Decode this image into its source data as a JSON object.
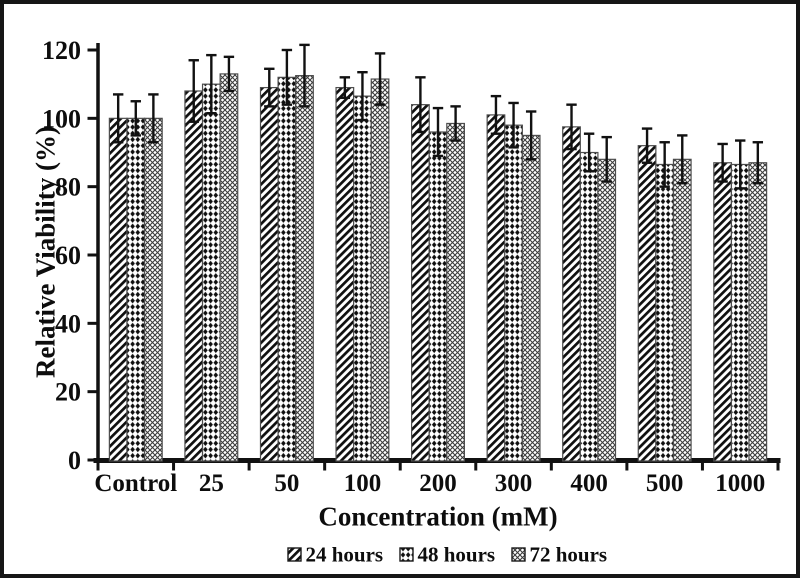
{
  "figure": {
    "background": "#ffffff",
    "border_color": "#161616"
  },
  "colors": {
    "bar_fill": "#ffffff",
    "pattern_ink": "#0f0f0f",
    "crosshatch_ink": "#3c3c3c",
    "bar_outline": "#4d4d4d",
    "axis": "#111111",
    "error_bar": "#111111",
    "text": "#0d0d0d"
  },
  "chart_data": {
    "type": "bar",
    "title": "",
    "xlabel": "Concentration (mM)",
    "ylabel": "Relative Viability (%)",
    "ylim": [
      0,
      120
    ],
    "yticks": [
      0,
      20,
      40,
      60,
      80,
      100,
      120
    ],
    "grid": false,
    "legend_position": "bottom",
    "error_bars": true,
    "categories": [
      "Control",
      "25",
      "50",
      "100",
      "200",
      "300",
      "400",
      "500",
      "1000"
    ],
    "series": [
      {
        "name": "24 hours",
        "pattern": "diagonal-stripes",
        "values": [
          100,
          108,
          109,
          109,
          104,
          101,
          97.5,
          92,
          87
        ],
        "errors": [
          7,
          9,
          5.5,
          3,
          8,
          5.5,
          6.5,
          5,
          5.5
        ]
      },
      {
        "name": "48 hours",
        "pattern": "dotted-diamonds",
        "values": [
          100,
          110,
          112,
          106.5,
          96,
          98,
          90,
          86.5,
          86.5
        ],
        "errors": [
          5,
          8.5,
          8,
          7,
          7,
          6.5,
          5.5,
          6.5,
          7
        ]
      },
      {
        "name": "72 hours",
        "pattern": "crosshatch",
        "values": [
          100,
          113,
          112.5,
          111.5,
          98.5,
          95,
          88,
          88,
          87
        ],
        "errors": [
          7,
          5,
          9,
          7.5,
          5,
          7,
          6.5,
          7,
          6
        ]
      }
    ]
  }
}
